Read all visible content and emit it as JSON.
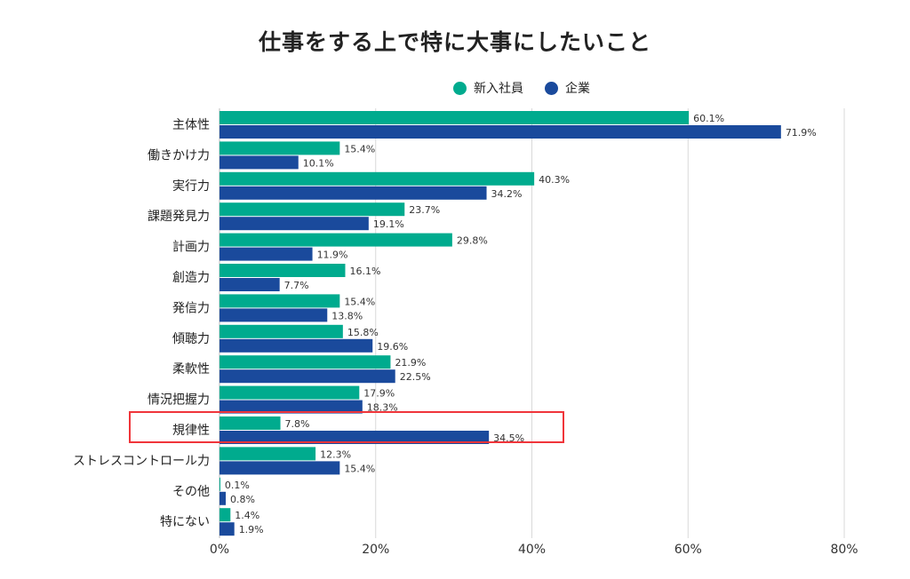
{
  "chart_data": {
    "type": "bar",
    "orientation": "horizontal",
    "title": "仕事をする上で特に大事にしたいこと",
    "legend_position": "top",
    "categories": [
      "主体性",
      "働きかけ力",
      "実行力",
      "課題発見力",
      "計画力",
      "創造力",
      "発信力",
      "傾聴力",
      "柔軟性",
      "情況把握力",
      "規律性",
      "ストレスコントロール力",
      "その他",
      "特にない"
    ],
    "series": [
      {
        "name": "新入社員",
        "color": "#00ab8e",
        "values": [
          60.1,
          15.4,
          40.3,
          23.7,
          29.8,
          16.1,
          15.4,
          15.8,
          21.9,
          17.9,
          7.8,
          12.3,
          0.1,
          1.4
        ]
      },
      {
        "name": "企業",
        "color": "#1a4a9c",
        "values": [
          71.9,
          10.1,
          34.2,
          19.1,
          11.9,
          7.7,
          13.8,
          19.6,
          22.5,
          18.3,
          34.5,
          15.4,
          0.8,
          1.9
        ]
      }
    ],
    "value_suffix": "%",
    "xlim": [
      0,
      80
    ],
    "xticks": [
      "0%",
      "20%",
      "40%",
      "60%",
      "80%"
    ],
    "grid": true,
    "highlighted_category": "規律性",
    "highlight_color": "#f0353a"
  }
}
